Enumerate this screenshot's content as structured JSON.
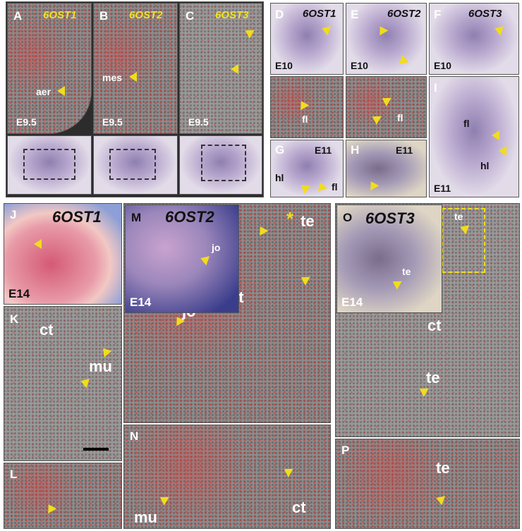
{
  "panels": {
    "A": {
      "letter": "A",
      "gene": "6OST1",
      "labels": [
        "aer"
      ],
      "stage": "E9.5"
    },
    "B": {
      "letter": "B",
      "gene": "6OST2",
      "labels": [
        "mes"
      ],
      "stage": "E9.5"
    },
    "C": {
      "letter": "C",
      "gene": "6OST3",
      "stage": "E9.5"
    },
    "D": {
      "letter": "D",
      "gene": "6OST1",
      "stage": "E10",
      "labels": [
        "fl"
      ]
    },
    "E": {
      "letter": "E",
      "gene": "6OST2",
      "stage": "E10",
      "labels": [
        "fl"
      ]
    },
    "F": {
      "letter": "F",
      "gene": "6OST3",
      "stage": "E10"
    },
    "G": {
      "letter": "G",
      "stage": "E11",
      "labels": [
        "hl",
        "fl"
      ]
    },
    "H": {
      "letter": "H",
      "stage": "E11"
    },
    "I": {
      "letter": "I",
      "stage": "E11",
      "labels": [
        "fl",
        "hl"
      ]
    },
    "J": {
      "letter": "J",
      "gene": "6OST1",
      "stage": "E14"
    },
    "K": {
      "letter": "K",
      "labels": [
        "ct",
        "mu"
      ]
    },
    "L": {
      "letter": "L"
    },
    "M": {
      "letter": "M",
      "gene": "6OST2",
      "stage": "E14",
      "labels": [
        "jo",
        "jo",
        "ct",
        "*",
        "te"
      ]
    },
    "N": {
      "letter": "N",
      "labels": [
        "mu",
        "ct"
      ]
    },
    "O": {
      "letter": "O",
      "gene": "6OST3",
      "stage": "E14",
      "labels": [
        "te",
        "te",
        "ct",
        "te"
      ]
    },
    "P": {
      "letter": "P",
      "labels": [
        "te"
      ]
    }
  }
}
